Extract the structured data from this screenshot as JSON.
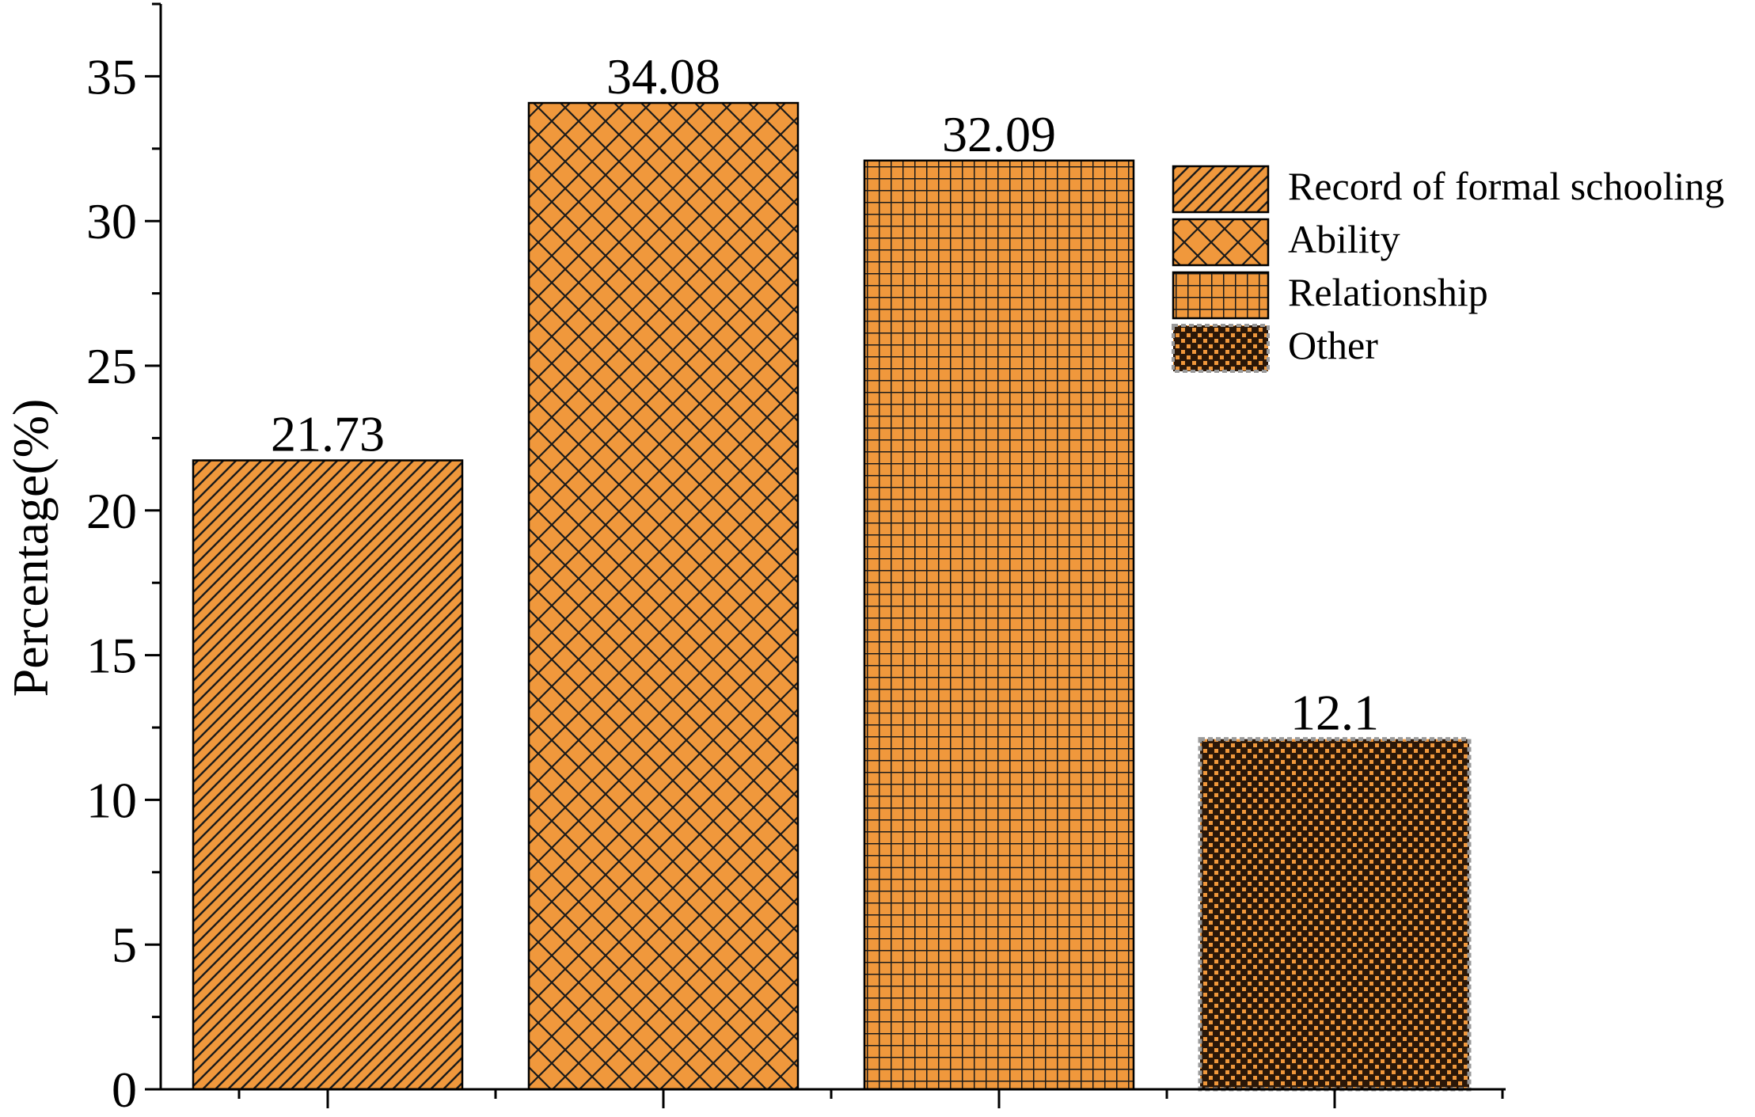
{
  "chart_data": {
    "type": "bar",
    "title": "",
    "xlabel": "",
    "ylabel": "Percentage(%)",
    "ylim": [
      0,
      37.5
    ],
    "yticks": [
      0,
      5,
      10,
      15,
      20,
      25,
      30,
      35
    ],
    "grid": false,
    "legend_position": "top-right",
    "categories": [
      "Record of formal schooling",
      "Ability",
      "Relationship",
      "Other"
    ],
    "values": [
      21.73,
      34.08,
      32.09,
      12.1
    ],
    "value_labels": [
      "21.73",
      "34.08",
      "32.09",
      "12.1"
    ],
    "patterns": [
      "diagonal-hatch",
      "cross-hatch",
      "grid",
      "checker"
    ],
    "colors": {
      "bar_fill": "#f0983c",
      "pattern": "#1a1a1a",
      "axis": "#000000",
      "other_border": "#9a9a9a"
    }
  }
}
